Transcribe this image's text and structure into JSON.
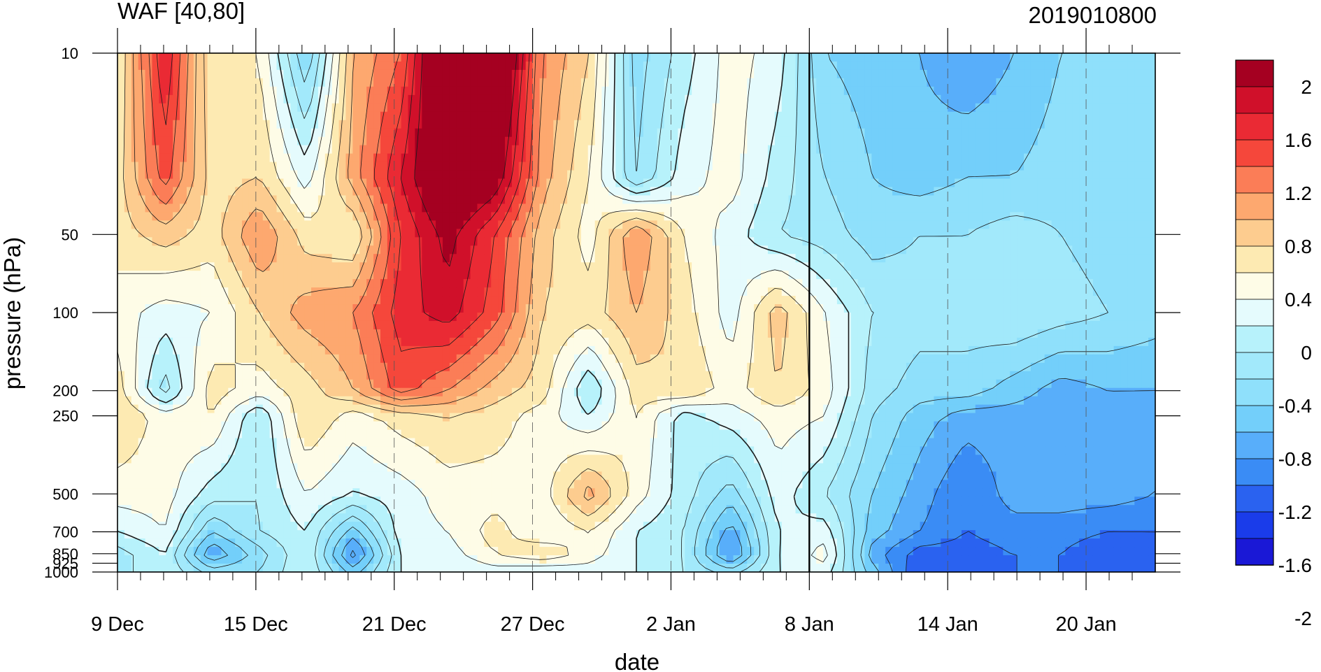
{
  "chart_data": {
    "type": "heatmap",
    "title_left": "WAF [40,80]",
    "title_right": "2019010800",
    "xlabel": "date",
    "ylabel": "pressure (hPa)",
    "x_ticks": [
      "9 Dec",
      "15 Dec",
      "21 Dec",
      "27 Dec",
      "2 Jan",
      "8 Jan",
      "14 Jan",
      "20 Jan"
    ],
    "x_range": [
      "9 Dec",
      "24 Jan"
    ],
    "y_scale": "log",
    "y_reversed": true,
    "y_range": [
      1000,
      10
    ],
    "y_ticks": [
      10,
      50,
      100,
      200,
      250,
      500,
      700,
      850,
      925,
      1000
    ],
    "y_tick_labels": [
      "10",
      "50",
      "100",
      "200",
      "250",
      "500",
      "700",
      "850",
      "925",
      "1000"
    ],
    "analysis_divider": "8 Jan",
    "colorbar": {
      "labels": [
        "2",
        "1.6",
        "1.2",
        "0.8",
        "0.4",
        "0",
        "-0.4",
        "-0.8",
        "-1.2",
        "-1.6",
        "-2"
      ],
      "colors": [
        "#a50021",
        "#d0102a",
        "#ea2a34",
        "#f5473b",
        "#fb7d57",
        "#fda86f",
        "#fdcc8f",
        "#fdeab2",
        "#fefce7",
        "#e5fbfd",
        "#b7f2fb",
        "#a2e9fb",
        "#8fe0fb",
        "#73cffa",
        "#58aefa",
        "#3a8cf5",
        "#2a62f0",
        "#1a3cea",
        "#1a18d6"
      ]
    },
    "field": {
      "days": [
        0,
        2,
        4,
        6,
        8,
        10,
        12,
        14,
        16,
        18,
        20,
        22,
        24,
        26,
        28,
        30,
        32,
        34,
        36,
        38,
        40,
        42,
        44
      ],
      "pressure": [
        10,
        30,
        50,
        100,
        200,
        250,
        500,
        700,
        850,
        1000
      ],
      "values": [
        [
          0.4,
          1.6,
          0.4,
          0.4,
          -0.6,
          0.8,
          1.2,
          2.5,
          2.5,
          1.0,
          0.6,
          -0.5,
          -0.1,
          0.3,
          0.1,
          -0.6,
          -0.7,
          -0.8,
          -1.0,
          -0.8,
          -0.6,
          -0.5,
          -0.4
        ],
        [
          0.5,
          1.3,
          0.5,
          0.6,
          0.1,
          0.9,
          1.6,
          2.3,
          2.0,
          0.9,
          0.4,
          -0.4,
          0.1,
          0.3,
          -0.1,
          -0.4,
          -0.6,
          -0.7,
          -0.6,
          -0.6,
          -0.5,
          -0.5,
          -0.5
        ],
        [
          0.5,
          0.7,
          0.5,
          1.0,
          0.5,
          0.4,
          1.4,
          1.9,
          1.4,
          0.7,
          0.3,
          1.0,
          0.4,
          0.1,
          -0.2,
          -0.3,
          -0.5,
          -0.4,
          -0.4,
          -0.3,
          -0.4,
          -0.5,
          -0.5
        ],
        [
          0.3,
          0.1,
          0.2,
          0.6,
          0.9,
          1.0,
          1.5,
          1.7,
          1.3,
          0.6,
          0.5,
          0.8,
          0.5,
          0.1,
          0.7,
          0.2,
          -0.2,
          -0.3,
          -0.3,
          -0.2,
          -0.3,
          -0.4,
          -0.5
        ],
        [
          0.5,
          -0.3,
          0.5,
          0.3,
          0.5,
          0.8,
          1.3,
          1.0,
          0.7,
          0.5,
          -0.2,
          0.5,
          0.6,
          0.3,
          0.6,
          0.3,
          -0.3,
          -0.5,
          -0.5,
          -0.7,
          -0.9,
          -0.8,
          -0.8
        ],
        [
          0.6,
          0.3,
          0.4,
          -0.2,
          0.6,
          0.3,
          0.5,
          0.6,
          0.5,
          0.3,
          0.0,
          0.4,
          -0.1,
          0.1,
          0.3,
          0.2,
          -0.4,
          -0.7,
          -0.9,
          -0.9,
          -0.9,
          -0.9,
          -0.9
        ],
        [
          0.3,
          0.3,
          -0.1,
          -0.2,
          0.2,
          0.0,
          0.1,
          0.3,
          0.3,
          0.3,
          0.9,
          0.3,
          -0.1,
          -0.5,
          0.1,
          -0.2,
          -0.6,
          -0.9,
          -1.2,
          -0.9,
          -0.9,
          -0.9,
          -1.0
        ],
        [
          0.0,
          0.2,
          -0.6,
          -0.2,
          0.0,
          -0.7,
          0.1,
          0.2,
          0.5,
          0.2,
          0.4,
          0.0,
          -0.2,
          -0.9,
          0.0,
          0.1,
          -0.7,
          -1.0,
          -1.2,
          -1.1,
          -1.1,
          -1.2,
          -1.2
        ],
        [
          -0.3,
          0.0,
          -1.0,
          -0.5,
          0.0,
          -1.1,
          0.0,
          0.1,
          0.4,
          0.6,
          0.3,
          0.0,
          -0.2,
          -1.1,
          0.0,
          0.3,
          -0.9,
          -1.3,
          -1.3,
          -1.2,
          -1.2,
          -1.4,
          -1.3
        ],
        [
          -0.3,
          0.0,
          -0.5,
          -0.4,
          0.0,
          -0.7,
          0.0,
          0.0,
          0.1,
          0.0,
          0.1,
          0.0,
          -0.2,
          -0.5,
          0.0,
          0.1,
          -0.7,
          -1.4,
          -1.3,
          -1.2,
          -1.2,
          -1.4,
          -1.3
        ]
      ]
    }
  }
}
